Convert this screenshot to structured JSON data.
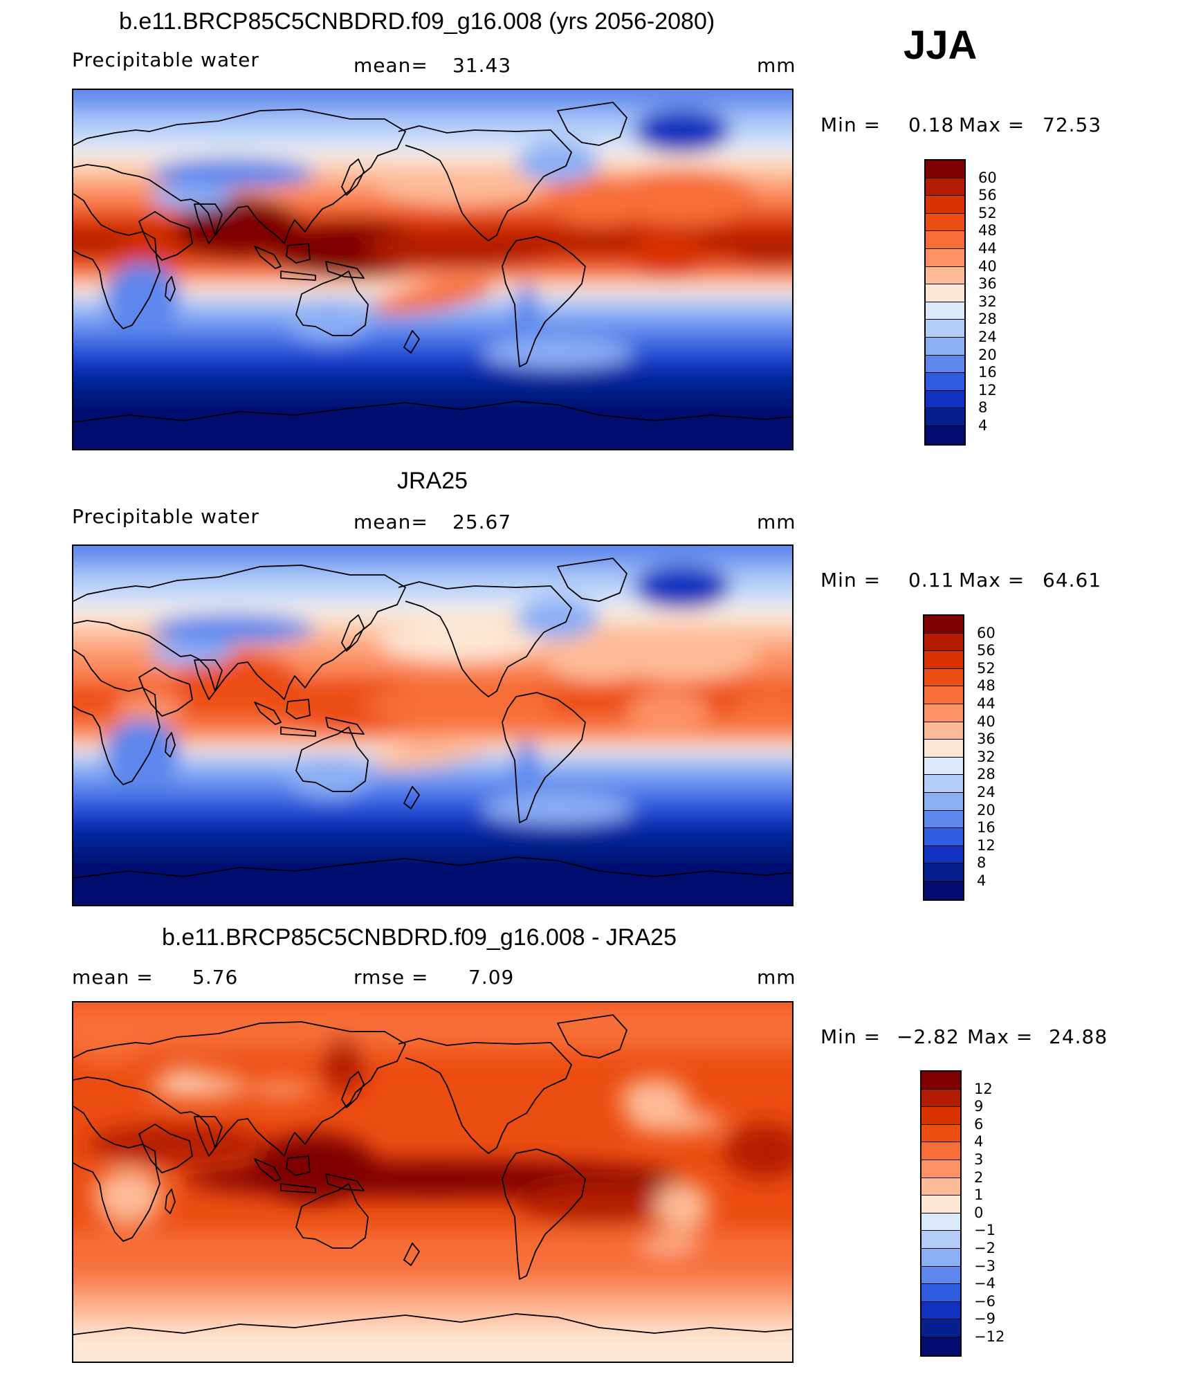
{
  "season": "JJA",
  "panels": [
    {
      "id": "model",
      "title": "b.e11.BRCP85C5CNBDRD.f09_g16.008 (yrs 2056-2080)",
      "variable": "Precipitable water",
      "stat1_label": "mean=",
      "stat1_value": "31.43",
      "stat2_label": "",
      "stat2_value": "",
      "units": "mm",
      "min_label": "Min =",
      "min_value": "0.18",
      "max_label": "Max =",
      "max_value": "72.53",
      "levels": [
        "60",
        "56",
        "52",
        "48",
        "44",
        "40",
        "36",
        "32",
        "28",
        "24",
        "20",
        "16",
        "12",
        "8",
        "4"
      ],
      "colors": [
        "#7f0000",
        "#b31b00",
        "#d93300",
        "#ec4d12",
        "#f76e38",
        "#fc9165",
        "#fdbb98",
        "#fde7d4",
        "#dbe9fb",
        "#b4cdf8",
        "#8caff4",
        "#5d87ec",
        "#2f5ddf",
        "#0f33c0",
        "#06208f",
        "#020c6e"
      ]
    },
    {
      "id": "obs",
      "title": "JRA25",
      "variable": "Precipitable water",
      "stat1_label": "mean=",
      "stat1_value": "25.67",
      "stat2_label": "",
      "stat2_value": "",
      "units": "mm",
      "min_label": "Min =",
      "min_value": "0.11",
      "max_label": "Max =",
      "max_value": "64.61",
      "levels": [
        "60",
        "56",
        "52",
        "48",
        "44",
        "40",
        "36",
        "32",
        "28",
        "24",
        "20",
        "16",
        "12",
        "8",
        "4"
      ],
      "colors": [
        "#7f0000",
        "#b31b00",
        "#d93300",
        "#ec4d12",
        "#f76e38",
        "#fc9165",
        "#fdbb98",
        "#fde7d4",
        "#dbe9fb",
        "#b4cdf8",
        "#8caff4",
        "#5d87ec",
        "#2f5ddf",
        "#0f33c0",
        "#06208f",
        "#020c6e"
      ]
    },
    {
      "id": "diff",
      "title": "b.e11.BRCP85C5CNBDRD.f09_g16.008 - JRA25",
      "variable": "",
      "stat1_label": "mean =",
      "stat1_value": "5.76",
      "stat2_label": "rmse =",
      "stat2_value": "7.09",
      "units": "mm",
      "min_label": "Min =",
      "min_value": "−2.82",
      "max_label": "Max =",
      "max_value": "24.88",
      "levels": [
        "12",
        "9",
        "6",
        "4",
        "3",
        "2",
        "1",
        "0",
        "−1",
        "−2",
        "−3",
        "−4",
        "−6",
        "−9",
        "−12"
      ],
      "colors": [
        "#7f0000",
        "#b31b00",
        "#d93300",
        "#ec4d12",
        "#f76e38",
        "#fc9165",
        "#fdbb98",
        "#fde7d4",
        "#dbe9fb",
        "#b4cdf8",
        "#8caff4",
        "#5d87ec",
        "#2f5ddf",
        "#0f33c0",
        "#06208f",
        "#020c6e"
      ]
    }
  ]
}
